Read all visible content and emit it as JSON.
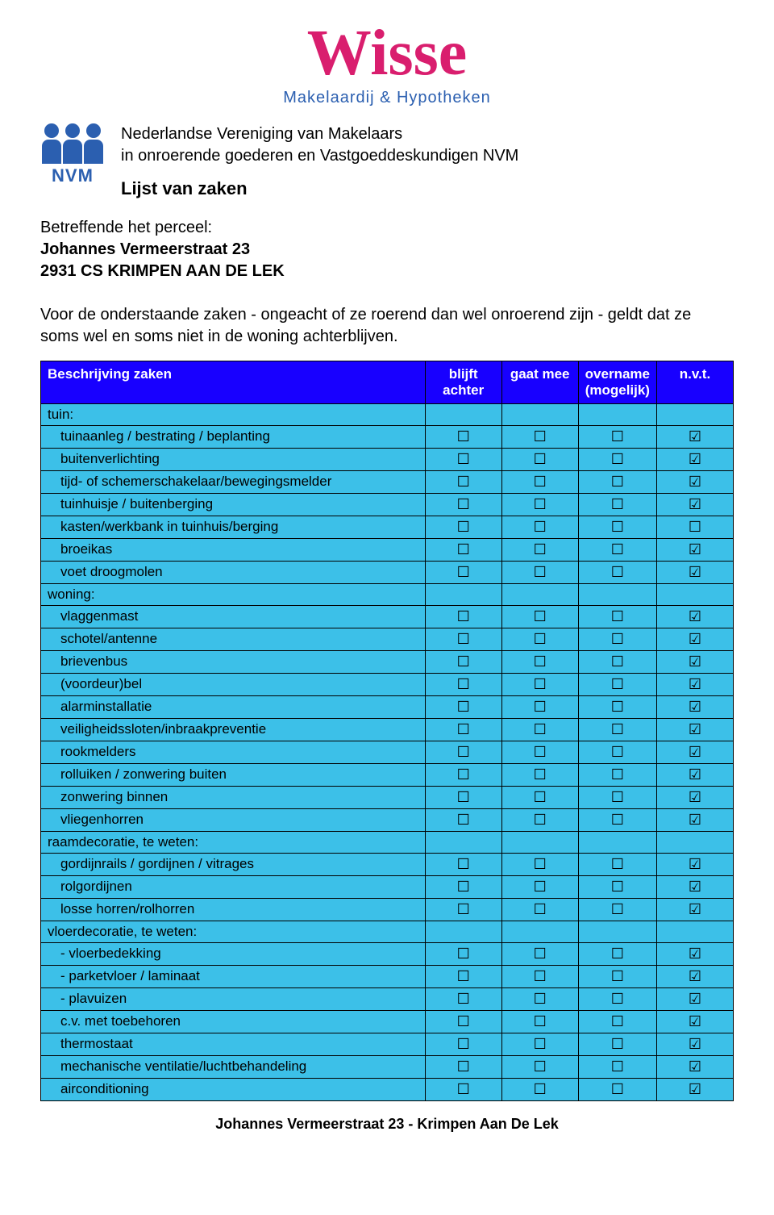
{
  "logo": {
    "brand": "Wisse",
    "subtitle": "Makelaardij & Hypotheken",
    "brand_color": "#d91e6e",
    "sub_color": "#2b5fb0"
  },
  "nvm": {
    "label": "NVM",
    "color": "#2b5fb0"
  },
  "header": {
    "line1": "Nederlandse Vereniging van Makelaars",
    "line2": "in onroerende goederen en Vastgoeddeskundigen NVM",
    "title": "Lijst van zaken"
  },
  "intro": {
    "label": "Betreffende het perceel:",
    "addr1": "Johannes Vermeerstraat 23",
    "addr2": "2931 CS KRIMPEN AAN DE LEK",
    "para1": "Voor de onderstaande zaken - ongeacht of ze roerend dan wel onroerend zijn - geldt dat ze soms wel en soms niet in de woning achterblijven."
  },
  "table": {
    "header_bg": "#1800ff",
    "header_fg": "#ffffff",
    "row_bg": "#3cc0e8",
    "border_color": "#000000",
    "columns": {
      "desc": "Beschrijving zaken",
      "c1": "blijft achter",
      "c2": "gaat mee",
      "c3": "overname (mogelijk)",
      "c4": "n.v.t."
    },
    "rows": [
      {
        "type": "section",
        "label": "tuin:"
      },
      {
        "type": "item",
        "label": "tuinaanleg / bestrating / beplanting",
        "checks": [
          "e",
          "e",
          "e",
          "c"
        ]
      },
      {
        "type": "item",
        "label": "buitenverlichting",
        "checks": [
          "e",
          "e",
          "e",
          "c"
        ]
      },
      {
        "type": "item",
        "label": "tijd- of schemerschakelaar/bewegingsmelder",
        "checks": [
          "e",
          "e",
          "e",
          "c"
        ]
      },
      {
        "type": "item",
        "label": "tuinhuisje / buitenberging",
        "checks": [
          "e",
          "e",
          "e",
          "c"
        ]
      },
      {
        "type": "item",
        "label": "kasten/werkbank in tuinhuis/berging",
        "checks": [
          "e",
          "e",
          "e",
          "e"
        ]
      },
      {
        "type": "item",
        "label": "broeikas",
        "checks": [
          "e",
          "e",
          "e",
          "c"
        ]
      },
      {
        "type": "item",
        "label": "voet droogmolen",
        "checks": [
          "e",
          "e",
          "e",
          "c"
        ]
      },
      {
        "type": "section",
        "label": "woning:"
      },
      {
        "type": "item",
        "label": "vlaggenmast",
        "checks": [
          "e",
          "e",
          "e",
          "c"
        ]
      },
      {
        "type": "item",
        "label": "schotel/antenne",
        "checks": [
          "e",
          "e",
          "e",
          "c"
        ]
      },
      {
        "type": "item",
        "label": "brievenbus",
        "checks": [
          "e",
          "e",
          "e",
          "c"
        ]
      },
      {
        "type": "item",
        "label": "(voordeur)bel",
        "checks": [
          "e",
          "e",
          "e",
          "c"
        ]
      },
      {
        "type": "item",
        "label": "alarminstallatie",
        "checks": [
          "e",
          "e",
          "e",
          "c"
        ]
      },
      {
        "type": "item",
        "label": "veiligheidssloten/inbraakpreventie",
        "checks": [
          "e",
          "e",
          "e",
          "c"
        ]
      },
      {
        "type": "item",
        "label": "rookmelders",
        "checks": [
          "e",
          "e",
          "e",
          "c"
        ]
      },
      {
        "type": "item",
        "label": "rolluiken / zonwering buiten",
        "checks": [
          "e",
          "e",
          "e",
          "c"
        ]
      },
      {
        "type": "item",
        "label": "zonwering binnen",
        "checks": [
          "e",
          "e",
          "e",
          "c"
        ]
      },
      {
        "type": "item",
        "label": "vliegenhorren",
        "checks": [
          "e",
          "e",
          "e",
          "c"
        ]
      },
      {
        "type": "section",
        "label": "raamdecoratie, te weten:"
      },
      {
        "type": "item",
        "label": "gordijnrails / gordijnen / vitrages",
        "checks": [
          "e",
          "e",
          "e",
          "c"
        ]
      },
      {
        "type": "item",
        "label": "rolgordijnen",
        "checks": [
          "e",
          "e",
          "e",
          "c"
        ]
      },
      {
        "type": "item",
        "label": "losse horren/rolhorren",
        "checks": [
          "e",
          "e",
          "e",
          "c"
        ]
      },
      {
        "type": "section",
        "label": "vloerdecoratie, te weten:"
      },
      {
        "type": "item",
        "label": "-  vloerbedekking",
        "checks": [
          "e",
          "e",
          "e",
          "c"
        ]
      },
      {
        "type": "item",
        "label": "-  parketvloer / laminaat",
        "checks": [
          "e",
          "e",
          "e",
          "c"
        ]
      },
      {
        "type": "item",
        "label": "-  plavuizen",
        "checks": [
          "e",
          "e",
          "e",
          "c"
        ]
      },
      {
        "type": "item",
        "label": "c.v. met toebehoren",
        "checks": [
          "e",
          "e",
          "e",
          "c"
        ]
      },
      {
        "type": "item",
        "label": "thermostaat",
        "checks": [
          "e",
          "e",
          "e",
          "c"
        ]
      },
      {
        "type": "item",
        "label": "mechanische ventilatie/luchtbehandeling",
        "checks": [
          "e",
          "e",
          "e",
          "c"
        ]
      },
      {
        "type": "item",
        "label": "airconditioning",
        "checks": [
          "e",
          "e",
          "e",
          "c"
        ]
      }
    ]
  },
  "footer": "Johannes Vermeerstraat 23 - Krimpen Aan De Lek"
}
